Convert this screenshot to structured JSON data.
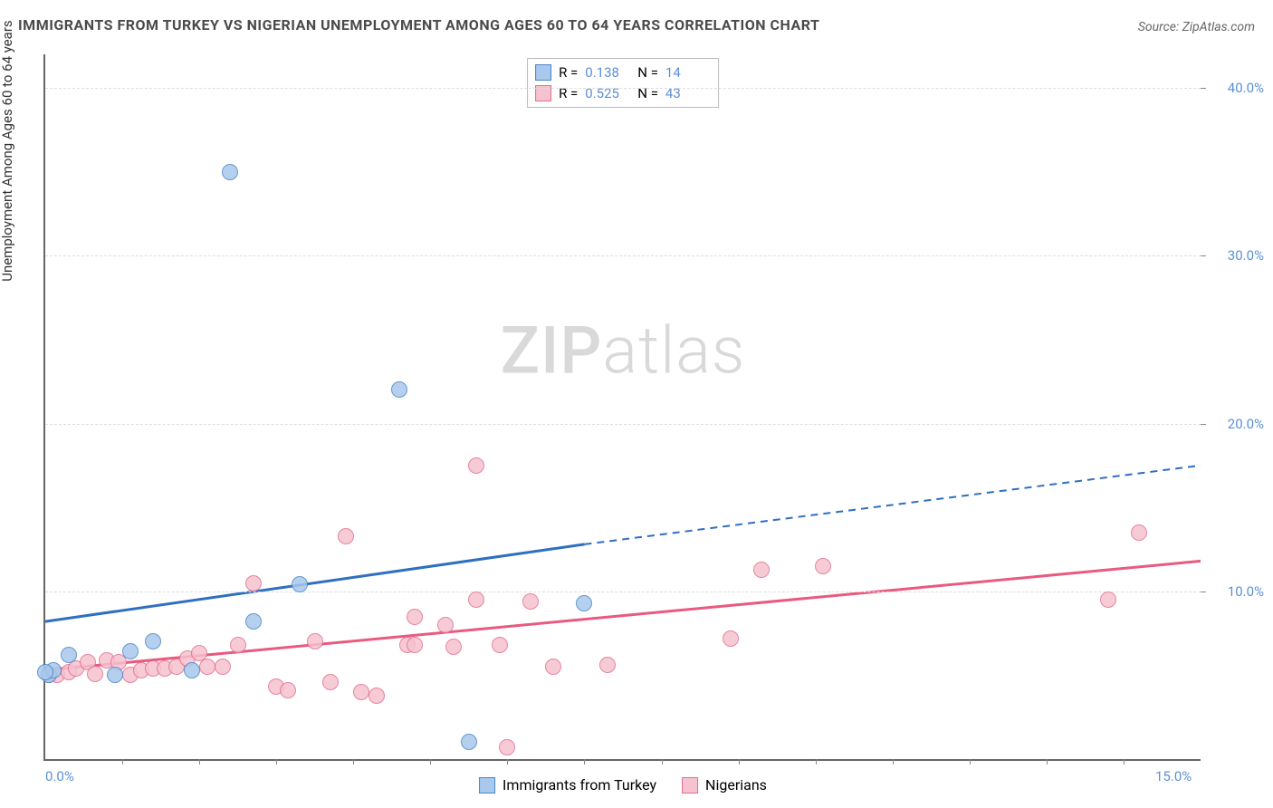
{
  "title": "IMMIGRANTS FROM TURKEY VS NIGERIAN UNEMPLOYMENT AMONG AGES 60 TO 64 YEARS CORRELATION CHART",
  "title_fontsize": 16,
  "title_color": "#4a4a4a",
  "source_label": "Source: ZipAtlas.com",
  "source_fontsize": 14,
  "source_color": "#666666",
  "ylabel": "Unemployment Among Ages 60 to 64 years",
  "ylabel_fontsize": 15,
  "ylabel_color": "#333333",
  "watermark_bold": "ZIP",
  "watermark_light": "atlas",
  "chart": {
    "type": "scatter",
    "background_color": "#ffffff",
    "grid_color": "#dddddd",
    "axis_color": "#666666",
    "xlim": [
      0,
      15
    ],
    "ylim": [
      0,
      42
    ],
    "xticks": [
      0,
      15
    ],
    "xtick_labels": [
      "0.0%",
      "15.0%"
    ],
    "xtick_minor": [
      1,
      2,
      3,
      4,
      5,
      6,
      7,
      8,
      9,
      10,
      11,
      12,
      13,
      14
    ],
    "yticks": [
      10,
      20,
      30,
      40
    ],
    "ytick_labels": [
      "10.0%",
      "20.0%",
      "30.0%",
      "40.0%"
    ],
    "tick_label_color": "#5b8fd6",
    "tick_label_fontsize": 15,
    "marker_radius": 9,
    "marker_stroke_width": 1.5,
    "trend_width_solid": 3,
    "trend_width_dash": 2
  },
  "series": [
    {
      "id": "turkey",
      "label": "Immigrants from Turkey",
      "fill_color": "#a8c8ec",
      "stroke_color": "#4a87c9",
      "trend_color": "#2f6fc0",
      "R": "0.138",
      "N": "14",
      "trend": {
        "x1": 0,
        "y1": 8.2,
        "x_solid_end": 7.0,
        "y_solid_end": 12.8,
        "x2": 15,
        "y2": 17.5
      },
      "points": [
        [
          0.05,
          5.0
        ],
        [
          0.1,
          5.3
        ],
        [
          0.3,
          6.2
        ],
        [
          0.9,
          5.0
        ],
        [
          1.1,
          6.4
        ],
        [
          1.4,
          7.0
        ],
        [
          1.9,
          5.3
        ],
        [
          2.4,
          35.0
        ],
        [
          2.7,
          8.2
        ],
        [
          3.3,
          10.4
        ],
        [
          4.6,
          22.0
        ],
        [
          5.5,
          1.0
        ],
        [
          7.0,
          9.3
        ],
        [
          0.0,
          5.2
        ]
      ]
    },
    {
      "id": "nigerians",
      "label": "Nigerians",
      "fill_color": "#f6c2cf",
      "stroke_color": "#e36f8f",
      "trend_color": "#e85a80",
      "R": "0.525",
      "N": "43",
      "trend": {
        "x1": 0,
        "y1": 5.3,
        "x_solid_end": 15,
        "y_solid_end": 11.8,
        "x2": 15,
        "y2": 11.8
      },
      "points": [
        [
          0.05,
          5.0
        ],
        [
          0.15,
          5.0
        ],
        [
          0.3,
          5.2
        ],
        [
          0.4,
          5.4
        ],
        [
          0.55,
          5.8
        ],
        [
          0.65,
          5.1
        ],
        [
          0.8,
          5.9
        ],
        [
          0.95,
          5.8
        ],
        [
          1.1,
          5.0
        ],
        [
          1.25,
          5.3
        ],
        [
          1.4,
          5.4
        ],
        [
          1.55,
          5.4
        ],
        [
          1.7,
          5.5
        ],
        [
          1.85,
          6.0
        ],
        [
          2.0,
          6.3
        ],
        [
          2.1,
          5.5
        ],
        [
          2.3,
          5.5
        ],
        [
          2.5,
          6.8
        ],
        [
          2.7,
          10.5
        ],
        [
          3.0,
          4.3
        ],
        [
          3.15,
          4.1
        ],
        [
          3.5,
          7.0
        ],
        [
          3.7,
          4.6
        ],
        [
          3.9,
          13.3
        ],
        [
          4.1,
          4.0
        ],
        [
          4.3,
          3.8
        ],
        [
          4.7,
          6.8
        ],
        [
          4.8,
          8.5
        ],
        [
          4.8,
          6.8
        ],
        [
          5.2,
          8.0
        ],
        [
          5.3,
          6.7
        ],
        [
          5.6,
          17.5
        ],
        [
          5.6,
          9.5
        ],
        [
          5.9,
          6.8
        ],
        [
          6.0,
          0.7
        ],
        [
          6.3,
          9.4
        ],
        [
          6.6,
          5.5
        ],
        [
          7.3,
          5.6
        ],
        [
          8.9,
          7.2
        ],
        [
          9.3,
          11.3
        ],
        [
          10.1,
          11.5
        ],
        [
          13.8,
          9.5
        ],
        [
          14.2,
          13.5
        ]
      ]
    }
  ],
  "legend_R_label": "R  =",
  "legend_N_label": "N  ="
}
